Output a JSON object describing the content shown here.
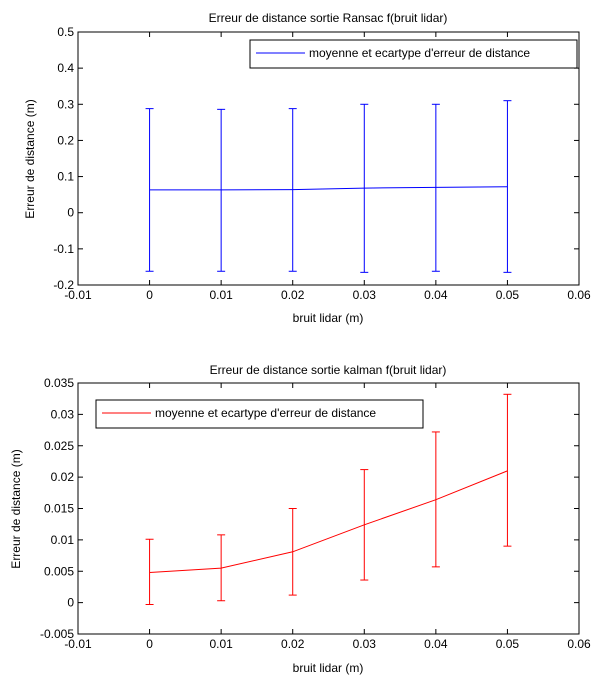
{
  "chart_data": [
    {
      "type": "line",
      "title": "Erreur de distance sortie Ransac f(bruit lidar)",
      "xlabel": "bruit lidar (m)",
      "ylabel": "Erreur de distance (m)",
      "xlim": [
        -0.01,
        0.06
      ],
      "ylim": [
        -0.2,
        0.5
      ],
      "xticks": [
        "-0.01",
        "0",
        "0.01",
        "0.02",
        "0.03",
        "0.04",
        "0.05",
        "0.06"
      ],
      "yticks": [
        "-0.2",
        "-0.1",
        "0",
        "0.1",
        "0.2",
        "0.3",
        "0.4",
        "0.5"
      ],
      "grid": false,
      "legend_position": "top-right",
      "series": [
        {
          "name": "moyenne et ecartype d'erreur de distance",
          "color": "#0000ff",
          "x": [
            0,
            0.01,
            0.02,
            0.03,
            0.04,
            0.05
          ],
          "y": [
            0.063,
            0.063,
            0.064,
            0.068,
            0.07,
            0.072
          ],
          "err_low": [
            -0.162,
            -0.162,
            -0.162,
            -0.165,
            -0.162,
            -0.165
          ],
          "err_high": [
            0.288,
            0.286,
            0.288,
            0.3,
            0.3,
            0.31
          ]
        }
      ]
    },
    {
      "type": "line",
      "title": "Erreur de distance sortie kalman f(bruit lidar)",
      "xlabel": "bruit lidar (m)",
      "ylabel": "Erreur de distance (m)",
      "xlim": [
        -0.01,
        0.06
      ],
      "ylim": [
        -0.005,
        0.035
      ],
      "xticks": [
        "-0.01",
        "0",
        "0.01",
        "0.02",
        "0.03",
        "0.04",
        "0.05",
        "0.06"
      ],
      "yticks": [
        "-0.005",
        "0",
        "0.005",
        "0.01",
        "0.015",
        "0.02",
        "0.025",
        "0.03",
        "0.035"
      ],
      "grid": false,
      "legend_position": "top-left",
      "series": [
        {
          "name": "moyenne et ecartype d'erreur de distance",
          "color": "#ff0000",
          "x": [
            0,
            0.01,
            0.02,
            0.03,
            0.04,
            0.05
          ],
          "y": [
            0.0048,
            0.0055,
            0.0081,
            0.0124,
            0.0164,
            0.021
          ],
          "err_low": [
            -0.0003,
            0.0003,
            0.0012,
            0.0036,
            0.0057,
            0.009
          ],
          "err_high": [
            0.0101,
            0.0108,
            0.015,
            0.0212,
            0.0272,
            0.0332
          ]
        }
      ]
    }
  ]
}
